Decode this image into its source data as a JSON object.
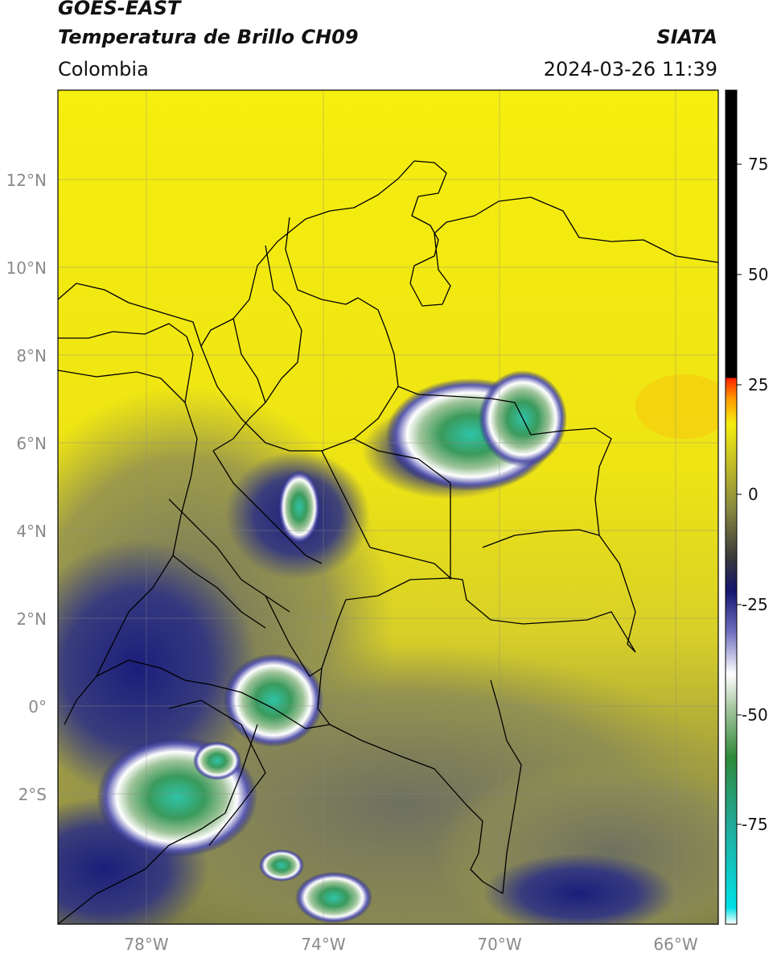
{
  "header": {
    "satellite": "GOES-EAST",
    "product": "Temperatura de Brillo CH09",
    "region": "Colombia",
    "brand": "SIATA",
    "timestamp": "2024-03-26 11:39"
  },
  "axes": {
    "lat_labels": [
      "12°N",
      "10°N",
      "8°N",
      "6°N",
      "4°N",
      "2°N",
      "0°",
      "2°S"
    ],
    "lon_labels": [
      "78°W",
      "74°W",
      "70°W",
      "66°W"
    ]
  },
  "colorbar": {
    "tick_labels": [
      "75",
      "50",
      "25",
      "0",
      "-25",
      "-50",
      "-75"
    ]
  },
  "colors": {
    "clear_sky": "#f2ea10",
    "mid_cloud": "#8a8a4a",
    "deep_cloud": "#1b1e7a",
    "cold_top": "#3a9a5c",
    "coldest": "#2fc4a8"
  }
}
